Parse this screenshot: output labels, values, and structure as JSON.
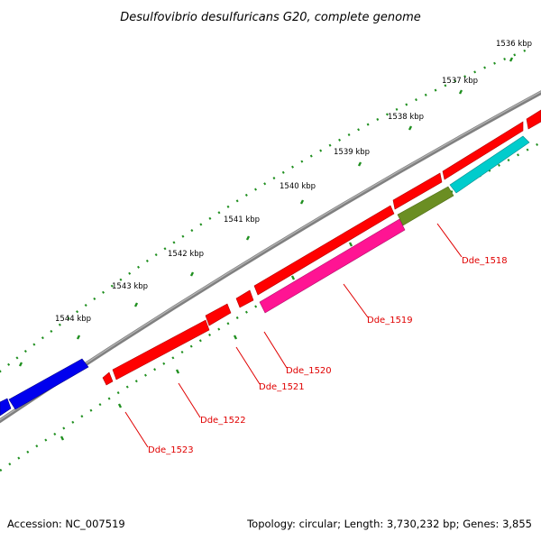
{
  "title": "Desulfovibrio desulfuricans G20, complete genome",
  "scale_unit": "kbp",
  "colors": {
    "backbone": "#808080",
    "tick": "#1f8f1f",
    "label": "#e00000",
    "leader": "#e00000"
  },
  "ticks": [
    {
      "position": "1536 kbp"
    },
    {
      "position": "1537 kbp"
    },
    {
      "position": "1538 kbp"
    },
    {
      "position": "1539 kbp"
    },
    {
      "position": "1540 kbp"
    },
    {
      "position": "1541 kbp"
    },
    {
      "position": "1542 kbp"
    },
    {
      "position": "1543 kbp"
    },
    {
      "position": "1544 kbp"
    }
  ],
  "genes": [
    {
      "name": "Dde_1518",
      "color": "#6b8e23"
    },
    {
      "name": "Dde_1519",
      "color": "#ff1493"
    },
    {
      "name": "Dde_1520",
      "color": "#ff0000"
    },
    {
      "name": "Dde_1521",
      "color": "#ff0000"
    },
    {
      "name": "Dde_1522",
      "color": "#ff0000"
    },
    {
      "name": "Dde_1523",
      "color": "#ff0000"
    }
  ],
  "other_features": [
    {
      "color": "#00cccc"
    },
    {
      "color": "#0000ee"
    }
  ],
  "footer": {
    "accession": "Accession: NC_007519",
    "summary": "Topology: circular; Length: 3,730,232 bp; Genes: 3,855"
  }
}
